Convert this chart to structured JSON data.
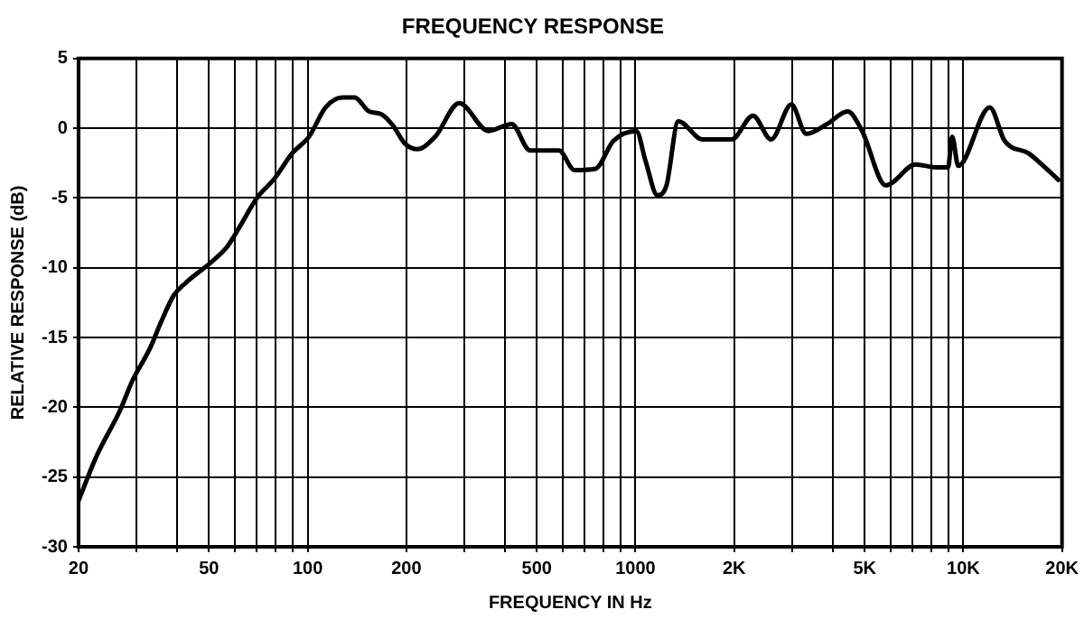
{
  "chart_data": {
    "type": "line",
    "title": "FREQUENCY RESPONSE",
    "xlabel": "FREQUENCY IN Hz",
    "ylabel": "RELATIVE RESPONSE (dB)",
    "log": "x",
    "grid": true,
    "legend": false,
    "marker": "none",
    "line_style": "solid",
    "xlim": [
      20,
      20000
    ],
    "ylim": [
      -30,
      5
    ],
    "xticks": [
      20,
      {
        "value": 30,
        "label": null
      },
      {
        "value": 40,
        "label": null
      },
      50,
      {
        "value": 60,
        "label": null
      },
      {
        "value": 70,
        "label": null
      },
      {
        "value": 80,
        "label": null
      },
      {
        "value": 90,
        "label": null
      },
      100,
      200,
      {
        "value": 300,
        "label": null
      },
      {
        "value": 400,
        "label": null
      },
      500,
      {
        "value": 600,
        "label": null
      },
      {
        "value": 700,
        "label": null
      },
      {
        "value": 800,
        "label": null
      },
      {
        "value": 900,
        "label": null
      },
      1000,
      {
        "value": 2000,
        "label": "2K"
      },
      {
        "value": 3000,
        "label": null
      },
      {
        "value": 4000,
        "label": null
      },
      {
        "value": 5000,
        "label": "5K"
      },
      {
        "value": 6000,
        "label": null
      },
      {
        "value": 7000,
        "label": null
      },
      {
        "value": 8000,
        "label": null
      },
      {
        "value": 9000,
        "label": null
      },
      {
        "value": 10000,
        "label": "10K"
      },
      {
        "value": 20000,
        "label": "20K"
      }
    ],
    "yticks": [
      -30,
      -25,
      -20,
      -15,
      -10,
      -5,
      0,
      5
    ],
    "series": [
      {
        "color": "#000000",
        "x": [
          20,
          22.7,
          26.8,
          29.2,
          33,
          35.7,
          39,
          42.4,
          50.2,
          56.8,
          61.9,
          70,
          79.3,
          89.7,
          101,
          113.5,
          128,
          139,
          154,
          168,
          182,
          198,
          216,
          245,
          290,
          356,
          419,
          477,
          584,
          652,
          755,
          857,
          1006,
          1072,
          1166,
          1243,
          1351,
          1601,
          1966,
          2283,
          2592,
          2990,
          3317,
          3840,
          4440,
          4912,
          5800,
          7153,
          8271,
          8985,
          9245,
          9649,
          12040,
          13360,
          15805,
          17180,
          19500
        ],
        "values": [
          -26.7,
          -23.5,
          -20.2,
          -18.1,
          -15.8,
          -13.9,
          -12,
          -11.1,
          -9.7,
          -8.5,
          -7.1,
          -5,
          -3.6,
          -1.8,
          -0.6,
          1.5,
          2.2,
          2.2,
          1.2,
          1,
          0.2,
          -1.1,
          -1.5,
          -0.6,
          1.8,
          -0.2,
          0.3,
          -1.6,
          -1.6,
          -3,
          -2.9,
          -0.9,
          -0.2,
          -2.3,
          -4.8,
          -4.1,
          0.5,
          -0.8,
          -0.8,
          0.9,
          -0.8,
          1.7,
          -0.4,
          0.3,
          1.2,
          -0.2,
          -4.1,
          -2.6,
          -2.8,
          -2.8,
          -0.6,
          -2.7,
          1.5,
          -0.9,
          -1.8,
          -2.5,
          -3.7
        ]
      }
    ]
  }
}
